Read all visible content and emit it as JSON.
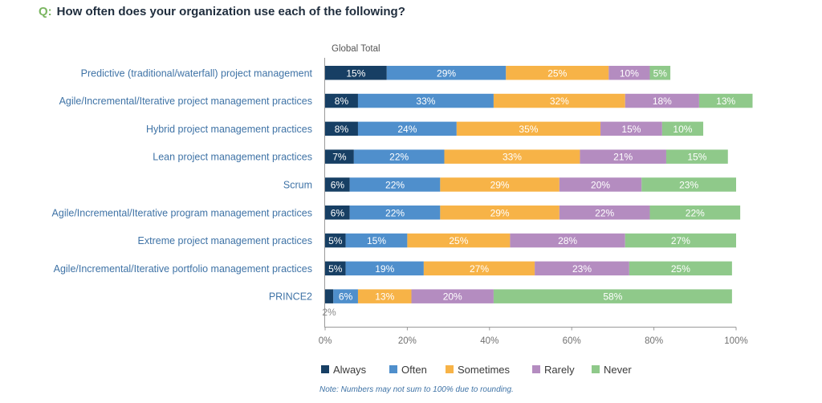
{
  "question": {
    "prefix": "Q:",
    "text": "How often does your organization use each of the following?"
  },
  "chart_data": {
    "type": "bar",
    "orientation": "horizontal",
    "stacked": true,
    "group_label": "Global Total",
    "categories": [
      "Predictive (traditional/waterfall) project management",
      "Agile/Incremental/Iterative project management practices",
      "Hybrid project management practices",
      "Lean project management practices",
      "Scrum",
      "Agile/Incremental/Iterative program management practices",
      "Extreme project management practices",
      "Agile/Incremental/Iterative portfolio management practices",
      "PRINCE2"
    ],
    "series": [
      {
        "name": "Always",
        "color": "#173f64",
        "values": [
          15,
          8,
          8,
          7,
          6,
          6,
          5,
          5,
          2
        ]
      },
      {
        "name": "Often",
        "color": "#4f8fcc",
        "values": [
          29,
          33,
          24,
          22,
          22,
          22,
          15,
          19,
          6
        ]
      },
      {
        "name": "Sometimes",
        "color": "#f7b347",
        "values": [
          25,
          32,
          35,
          33,
          29,
          29,
          25,
          27,
          13
        ]
      },
      {
        "name": "Rarely",
        "color": "#b48cc0",
        "values": [
          10,
          18,
          15,
          21,
          20,
          22,
          28,
          23,
          20
        ]
      },
      {
        "name": "Never",
        "color": "#8fc98a",
        "values": [
          5,
          13,
          10,
          15,
          23,
          22,
          27,
          25,
          58
        ]
      }
    ],
    "value_suffix": "%",
    "xlim": [
      0,
      100
    ],
    "xticks": [
      "0%",
      "20%",
      "40%",
      "60%",
      "80%",
      "100%"
    ],
    "legend_position": "bottom",
    "note": "Note: Numbers may not sum to 100% due to rounding."
  }
}
